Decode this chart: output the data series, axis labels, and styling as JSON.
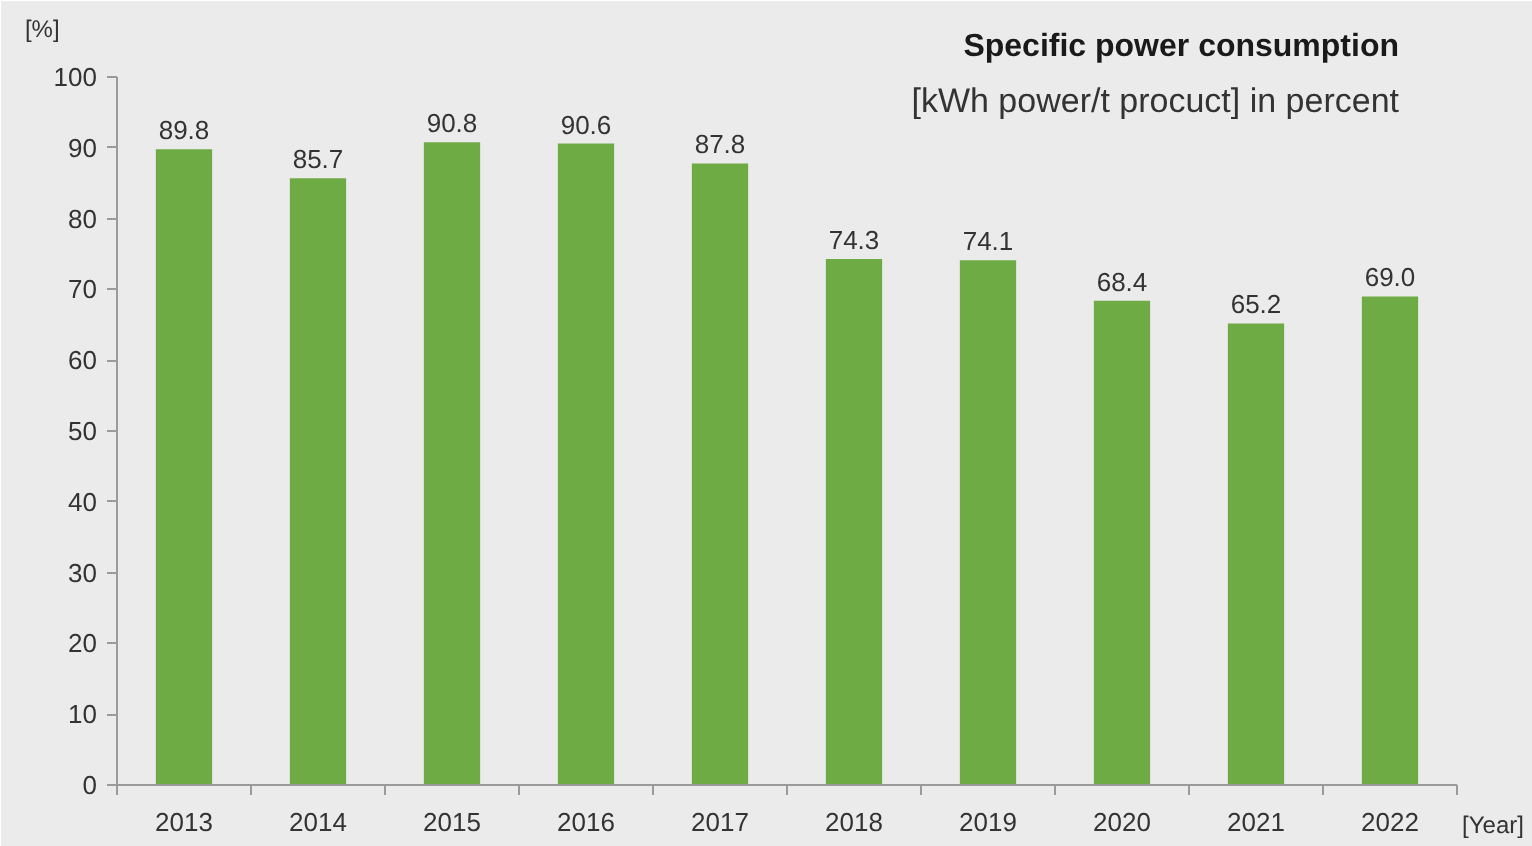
{
  "chart_data": {
    "type": "bar",
    "title": "Specific power consumption",
    "subtitle": "[kWh power/t procuct] in percent",
    "xlabel": "[Year]",
    "ylabel": "[%]",
    "categories": [
      "2013",
      "2014",
      "2015",
      "2016",
      "2017",
      "2018",
      "2019",
      "2020",
      "2021",
      "2022"
    ],
    "values": [
      89.8,
      85.7,
      90.8,
      90.6,
      87.8,
      74.3,
      74.1,
      68.4,
      65.2,
      69.0
    ],
    "value_labels": [
      "89.8",
      "85.7",
      "90.8",
      "90.6",
      "87.8",
      "74.3",
      "74.1",
      "68.4",
      "65.2",
      "69.0"
    ],
    "color": "#6fab45",
    "ylim": [
      0,
      100
    ],
    "yticks": [
      0,
      10,
      20,
      30,
      40,
      50,
      60,
      70,
      80,
      90,
      100
    ]
  }
}
